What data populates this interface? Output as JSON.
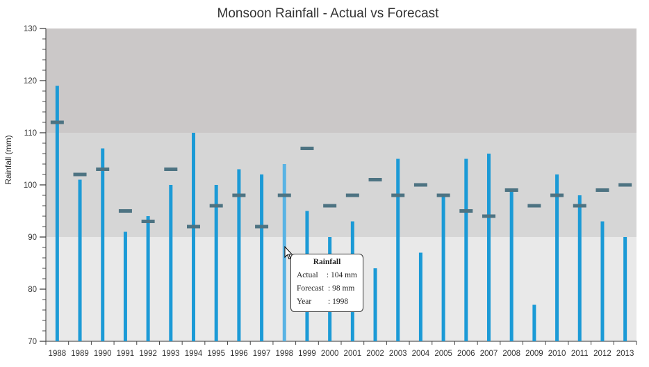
{
  "chart_data": {
    "type": "bar",
    "title": "Monsoon Rainfall - Actual vs Forecast",
    "xlabel": "",
    "ylabel": "Rainfall (mm)",
    "ylim": [
      70,
      130
    ],
    "y_major_ticks": [
      70,
      80,
      90,
      100,
      110,
      120,
      130
    ],
    "y_minor_step": 2,
    "categories": [
      "1988",
      "1989",
      "1990",
      "1991",
      "1992",
      "1993",
      "1994",
      "1995",
      "1996",
      "1997",
      "1998",
      "1999",
      "2000",
      "2001",
      "2002",
      "2003",
      "2004",
      "2005",
      "2006",
      "2007",
      "2008",
      "2009",
      "2010",
      "2011",
      "2012",
      "2013"
    ],
    "series": [
      {
        "name": "Actual",
        "kind": "bar",
        "color": "#1b9ad6",
        "highlight_color": "#59b3e4",
        "values": [
          119,
          101,
          107,
          91,
          94,
          100,
          110,
          100,
          103,
          102,
          104,
          95,
          90,
          93,
          84,
          105,
          87,
          98,
          105,
          106,
          99,
          77,
          102,
          98,
          93,
          90
        ]
      },
      {
        "name": "Forecast",
        "kind": "marker",
        "color": "#4d7382",
        "values": [
          112,
          102,
          103,
          95,
          93,
          103,
          92,
          96,
          98,
          92,
          98,
          107,
          96,
          98,
          101,
          98,
          100,
          98,
          95,
          94,
          99,
          96,
          98,
          96,
          99,
          100
        ]
      }
    ],
    "bands": [
      {
        "from": 70,
        "to": 90,
        "color": "#e9e9e9"
      },
      {
        "from": 90,
        "to": 110,
        "color": "#d6d6d6"
      },
      {
        "from": 110,
        "to": 130,
        "color": "#cbc8c8"
      }
    ],
    "highlighted_index": 10
  },
  "tooltip": {
    "title": "Rainfall",
    "rows": [
      {
        "key": "Actual",
        "value": ": 104 mm"
      },
      {
        "key": "Forecast",
        "value": ": 98 mm"
      },
      {
        "key": "Year",
        "value": ": 1998"
      }
    ]
  }
}
